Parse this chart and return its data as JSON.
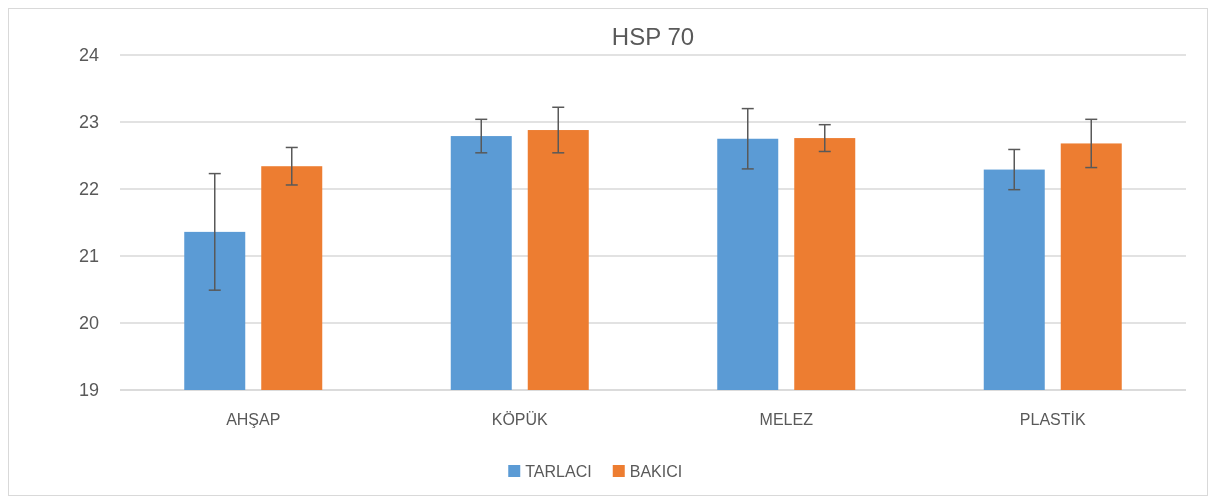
{
  "chart_data": {
    "type": "bar",
    "title": "HSP 70",
    "categories": [
      "AHŞAP",
      "KÖPÜK",
      "MELEZ",
      "PLASTİK"
    ],
    "series": [
      {
        "name": "TARLACI",
        "color": "#5b9bd5",
        "values": [
          21.36,
          22.79,
          22.75,
          22.29
        ],
        "errors": [
          0.87,
          0.25,
          0.45,
          0.3
        ]
      },
      {
        "name": "BAKICI",
        "color": "#ed7d31",
        "values": [
          22.34,
          22.88,
          22.76,
          22.68
        ],
        "errors": [
          0.28,
          0.34,
          0.2,
          0.36
        ]
      }
    ],
    "ylim": [
      19,
      24
    ],
    "yticks": [
      19,
      20,
      21,
      22,
      23,
      24
    ],
    "grid": "y",
    "legend": "bottom"
  }
}
